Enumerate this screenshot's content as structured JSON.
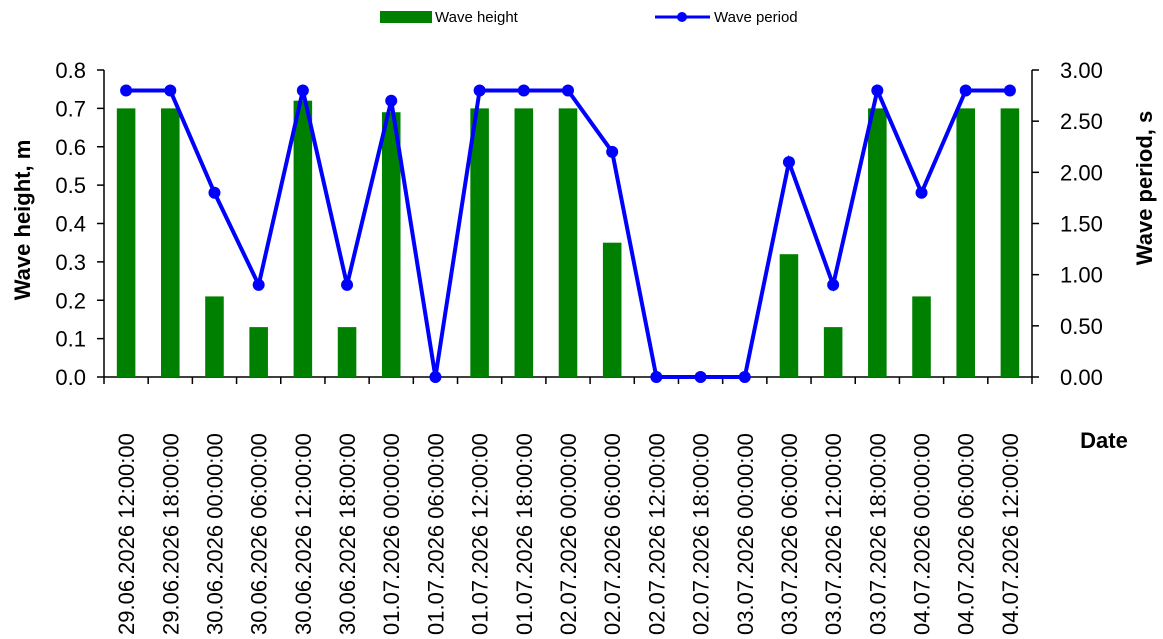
{
  "chart_data": {
    "type": "bar",
    "categories": [
      "29.06.2026 12:00:00",
      "29.06.2026 18:00:00",
      "30.06.2026 00:00:00",
      "30.06.2026 06:00:00",
      "30.06.2026 12:00:00",
      "30.06.2026 18:00:00",
      "01.07.2026 00:00:00",
      "01.07.2026 06:00:00",
      "01.07.2026 12:00:00",
      "01.07.2026 18:00:00",
      "02.07.2026 00:00:00",
      "02.07.2026 06:00:00",
      "02.07.2026 12:00:00",
      "02.07.2026 18:00:00",
      "03.07.2026 00:00:00",
      "03.07.2026 06:00:00",
      "03.07.2026 12:00:00",
      "03.07.2026 18:00:00",
      "04.07.2026 00:00:00",
      "04.07.2026 06:00:00",
      "04.07.2026 12:00:00"
    ],
    "series": [
      {
        "name": "Wave height",
        "type": "bar",
        "axis": "left",
        "color": "#008000",
        "values": [
          0.7,
          0.7,
          0.21,
          0.13,
          0.72,
          0.13,
          0.69,
          0.0,
          0.7,
          0.7,
          0.7,
          0.35,
          0.0,
          0.0,
          0.0,
          0.32,
          0.13,
          0.7,
          0.21,
          0.7,
          0.7
        ]
      },
      {
        "name": "Wave period",
        "type": "line",
        "axis": "right",
        "color": "#0000FF",
        "values": [
          2.8,
          2.8,
          1.8,
          0.9,
          2.8,
          0.9,
          2.7,
          0.0,
          2.8,
          2.8,
          2.8,
          2.2,
          0.0,
          0.0,
          0.0,
          2.1,
          0.9,
          2.8,
          1.8,
          2.8,
          2.8
        ]
      }
    ],
    "xlabel": "Date",
    "ylabel": "Wave height, m",
    "y2label": "Wave period, s",
    "ylim": [
      0,
      0.8
    ],
    "y2lim": [
      0,
      3.0
    ],
    "yticks": [
      "0.0",
      "0.1",
      "0.2",
      "0.3",
      "0.4",
      "0.5",
      "0.6",
      "0.7",
      "0.8"
    ],
    "y2ticks": [
      "0.00",
      "0.50",
      "1.00",
      "1.50",
      "2.00",
      "2.50",
      "3.00"
    ],
    "grid": false,
    "legend_position": "top-center"
  }
}
